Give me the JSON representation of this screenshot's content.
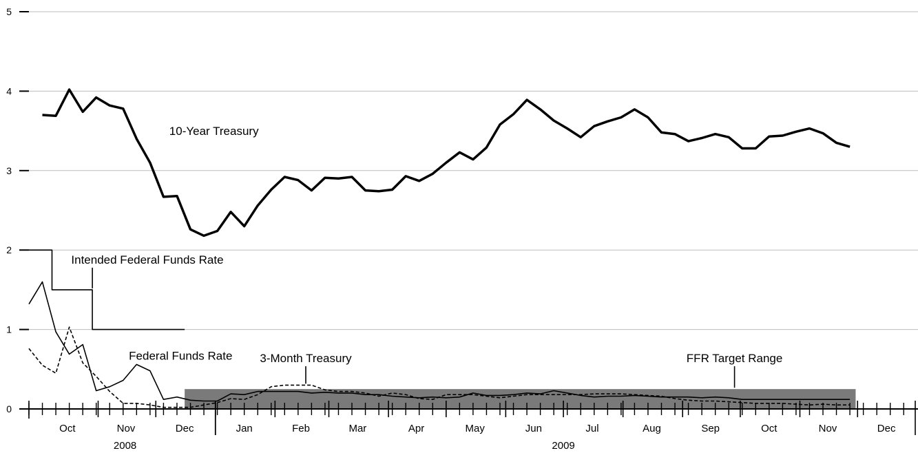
{
  "chart_data": {
    "type": "line",
    "ylim": [
      0,
      5
    ],
    "yticks": [
      "0",
      "1",
      "2",
      "3",
      "4",
      "5"
    ],
    "grid": true,
    "x_start": "2008-09-26",
    "x_end": "2009-12-31",
    "months": [
      {
        "label": "Oct",
        "start": "2008-10-01",
        "end": "2008-10-31"
      },
      {
        "label": "Nov",
        "start": "2008-11-01",
        "end": "2008-11-30"
      },
      {
        "label": "Dec",
        "start": "2008-12-01",
        "end": "2008-12-31"
      },
      {
        "label": "Jan",
        "start": "2009-01-01",
        "end": "2009-01-31"
      },
      {
        "label": "Feb",
        "start": "2009-02-01",
        "end": "2009-02-28"
      },
      {
        "label": "Mar",
        "start": "2009-03-01",
        "end": "2009-03-31"
      },
      {
        "label": "Apr",
        "start": "2009-04-01",
        "end": "2009-04-30"
      },
      {
        "label": "May",
        "start": "2009-05-01",
        "end": "2009-05-31"
      },
      {
        "label": "Jun",
        "start": "2009-06-01",
        "end": "2009-06-30"
      },
      {
        "label": "Jul",
        "start": "2009-07-01",
        "end": "2009-07-31"
      },
      {
        "label": "Aug",
        "start": "2009-08-01",
        "end": "2009-08-31"
      },
      {
        "label": "Sep",
        "start": "2009-09-01",
        "end": "2009-09-30"
      },
      {
        "label": "Oct",
        "start": "2009-10-01",
        "end": "2009-10-31"
      },
      {
        "label": "Nov",
        "start": "2009-11-01",
        "end": "2009-11-30"
      },
      {
        "label": "Dec",
        "start": "2009-12-01",
        "end": "2009-12-31"
      }
    ],
    "years": [
      {
        "label": "2008",
        "center": "2008-11-15"
      },
      {
        "label": "2009",
        "center": "2009-07-01"
      }
    ],
    "year_divider": "2009-01-01",
    "week_ticks_start": "2008-09-26",
    "week_ticks_end": "2009-12-31",
    "series": [
      {
        "name": "10-Year Treasury",
        "style": "thick",
        "color": "#000000",
        "x": [
          "2008-10-03",
          "2008-10-10",
          "2008-10-17",
          "2008-10-24",
          "2008-10-31",
          "2008-11-07",
          "2008-11-14",
          "2008-11-21",
          "2008-11-28",
          "2008-12-05",
          "2008-12-12",
          "2008-12-19",
          "2008-12-26",
          "2009-01-02",
          "2009-01-09",
          "2009-01-16",
          "2009-01-23",
          "2009-01-30",
          "2009-02-06",
          "2009-02-13",
          "2009-02-20",
          "2009-02-27",
          "2009-03-06",
          "2009-03-13",
          "2009-03-20",
          "2009-03-27",
          "2009-04-03",
          "2009-04-10",
          "2009-04-17",
          "2009-04-24",
          "2009-05-01",
          "2009-05-08",
          "2009-05-15",
          "2009-05-22",
          "2009-05-29",
          "2009-06-05",
          "2009-06-12",
          "2009-06-19",
          "2009-06-26",
          "2009-07-03",
          "2009-07-10",
          "2009-07-17",
          "2009-07-24",
          "2009-07-31",
          "2009-08-07",
          "2009-08-14",
          "2009-08-21",
          "2009-08-28",
          "2009-09-04",
          "2009-09-11",
          "2009-09-18",
          "2009-09-25",
          "2009-10-02",
          "2009-10-09",
          "2009-10-16",
          "2009-10-23",
          "2009-10-30",
          "2009-11-06",
          "2009-11-13",
          "2009-11-20",
          "2009-11-27"
        ],
        "values": [
          3.7,
          3.69,
          4.02,
          3.74,
          3.92,
          3.82,
          3.78,
          3.4,
          3.1,
          2.67,
          2.68,
          2.26,
          2.18,
          2.24,
          2.48,
          2.3,
          2.56,
          2.76,
          2.92,
          2.88,
          2.75,
          2.91,
          2.9,
          2.92,
          2.75,
          2.74,
          2.76,
          2.93,
          2.87,
          2.96,
          3.1,
          3.23,
          3.14,
          3.29,
          3.58,
          3.71,
          3.89,
          3.77,
          3.63,
          3.53,
          3.42,
          3.56,
          3.62,
          3.67,
          3.77,
          3.67,
          3.48,
          3.46,
          3.37,
          3.41,
          3.46,
          3.42,
          3.28,
          3.28,
          3.43,
          3.44,
          3.49,
          3.53,
          3.47,
          3.35,
          3.3
        ]
      },
      {
        "name": "Federal Funds Rate",
        "style": "thin",
        "color": "#000000",
        "x": [
          "2008-09-26",
          "2008-10-03",
          "2008-10-10",
          "2008-10-17",
          "2008-10-24",
          "2008-10-31",
          "2008-11-07",
          "2008-11-14",
          "2008-11-21",
          "2008-11-28",
          "2008-12-05",
          "2008-12-12",
          "2008-12-19",
          "2008-12-26",
          "2009-01-02",
          "2009-01-09",
          "2009-01-16",
          "2009-01-23",
          "2009-01-30",
          "2009-02-06",
          "2009-02-13",
          "2009-02-20",
          "2009-02-27",
          "2009-03-06",
          "2009-03-13",
          "2009-03-20",
          "2009-03-27",
          "2009-04-03",
          "2009-04-10",
          "2009-04-17",
          "2009-04-24",
          "2009-05-01",
          "2009-05-08",
          "2009-05-15",
          "2009-05-22",
          "2009-05-29",
          "2009-06-05",
          "2009-06-12",
          "2009-06-19",
          "2009-06-26",
          "2009-07-03",
          "2009-07-10",
          "2009-07-17",
          "2009-07-24",
          "2009-07-31",
          "2009-08-07",
          "2009-08-14",
          "2009-08-21",
          "2009-08-28",
          "2009-09-04",
          "2009-09-11",
          "2009-09-18",
          "2009-09-25",
          "2009-10-02",
          "2009-10-09",
          "2009-10-16",
          "2009-10-23",
          "2009-10-30",
          "2009-11-06",
          "2009-11-13",
          "2009-11-20",
          "2009-11-27"
        ],
        "values": [
          1.32,
          1.6,
          0.97,
          0.69,
          0.81,
          0.23,
          0.28,
          0.36,
          0.56,
          0.48,
          0.12,
          0.15,
          0.11,
          0.1,
          0.1,
          0.19,
          0.18,
          0.22,
          0.22,
          0.22,
          0.22,
          0.2,
          0.21,
          0.2,
          0.2,
          0.18,
          0.18,
          0.16,
          0.15,
          0.14,
          0.15,
          0.14,
          0.15,
          0.2,
          0.17,
          0.17,
          0.18,
          0.2,
          0.19,
          0.23,
          0.2,
          0.17,
          0.15,
          0.16,
          0.16,
          0.17,
          0.16,
          0.15,
          0.15,
          0.15,
          0.14,
          0.15,
          0.14,
          0.12,
          0.12,
          0.12,
          0.12,
          0.12,
          0.12,
          0.12,
          0.12,
          0.12
        ]
      },
      {
        "name": "3-Month Treasury",
        "style": "dashed",
        "color": "#000000",
        "x": [
          "2008-09-26",
          "2008-10-03",
          "2008-10-10",
          "2008-10-17",
          "2008-10-24",
          "2008-10-31",
          "2008-11-07",
          "2008-11-14",
          "2008-11-21",
          "2008-11-28",
          "2008-12-05",
          "2008-12-12",
          "2008-12-19",
          "2008-12-26",
          "2009-01-02",
          "2009-01-09",
          "2009-01-16",
          "2009-01-23",
          "2009-01-30",
          "2009-02-06",
          "2009-02-13",
          "2009-02-20",
          "2009-02-27",
          "2009-03-06",
          "2009-03-13",
          "2009-03-20",
          "2009-03-27",
          "2009-04-03",
          "2009-04-10",
          "2009-04-17",
          "2009-04-24",
          "2009-05-01",
          "2009-05-08",
          "2009-05-15",
          "2009-05-22",
          "2009-05-29",
          "2009-06-05",
          "2009-06-12",
          "2009-06-19",
          "2009-06-26",
          "2009-07-03",
          "2009-07-10",
          "2009-07-17",
          "2009-07-24",
          "2009-07-31",
          "2009-08-07",
          "2009-08-14",
          "2009-08-21",
          "2009-08-28",
          "2009-09-04",
          "2009-09-11",
          "2009-09-18",
          "2009-09-25",
          "2009-10-02",
          "2009-10-09",
          "2009-10-16",
          "2009-10-23",
          "2009-10-30",
          "2009-11-06",
          "2009-11-13",
          "2009-11-20",
          "2009-11-27"
        ],
        "values": [
          0.76,
          0.55,
          0.45,
          1.03,
          0.58,
          0.41,
          0.22,
          0.07,
          0.07,
          0.05,
          0.02,
          0.02,
          0.02,
          0.05,
          0.08,
          0.13,
          0.12,
          0.18,
          0.28,
          0.3,
          0.3,
          0.3,
          0.24,
          0.22,
          0.22,
          0.2,
          0.16,
          0.2,
          0.18,
          0.13,
          0.12,
          0.18,
          0.18,
          0.18,
          0.16,
          0.14,
          0.16,
          0.18,
          0.18,
          0.18,
          0.18,
          0.18,
          0.19,
          0.19,
          0.19,
          0.18,
          0.17,
          0.16,
          0.13,
          0.11,
          0.1,
          0.1,
          0.09,
          0.08,
          0.07,
          0.07,
          0.07,
          0.06,
          0.05,
          0.06,
          0.05,
          0.05
        ]
      },
      {
        "name": "Intended Federal Funds Rate",
        "style": "step",
        "color": "#000000",
        "x": [
          "2008-09-26",
          "2008-10-08",
          "2008-10-08",
          "2008-10-29",
          "2008-10-29",
          "2008-12-16"
        ],
        "values": [
          2,
          2,
          1.5,
          1.5,
          1,
          1
        ]
      }
    ],
    "bands": [
      {
        "name": "FFR Target Range",
        "x_start": "2008-12-16",
        "x_end": "2009-11-30",
        "y_low": 0,
        "y_high": 0.25,
        "color": "#7a7a7a"
      }
    ],
    "annotations": [
      {
        "text": "10-Year Treasury",
        "x": "2008-12-08",
        "y": 3.45,
        "anchor": "start",
        "pointer": false
      },
      {
        "text": "Intended Federal Funds Rate",
        "x": "2008-10-18",
        "y": 1.83,
        "anchor": "start",
        "pointer_to": [
          "2008-10-29",
          1.5
        ]
      },
      {
        "text": "Federal Funds Rate",
        "x": "2008-11-17",
        "y": 0.62,
        "anchor": "start",
        "pointer": false
      },
      {
        "text": "3-Month Treasury",
        "x": "2009-02-17",
        "y": 0.59,
        "anchor": "middle",
        "pointer_to": [
          "2009-02-17",
          0.3
        ]
      },
      {
        "text": "FFR Target Range",
        "x": "2009-09-28",
        "y": 0.59,
        "anchor": "middle",
        "pointer_to": [
          "2009-09-28",
          0.25
        ]
      }
    ]
  }
}
